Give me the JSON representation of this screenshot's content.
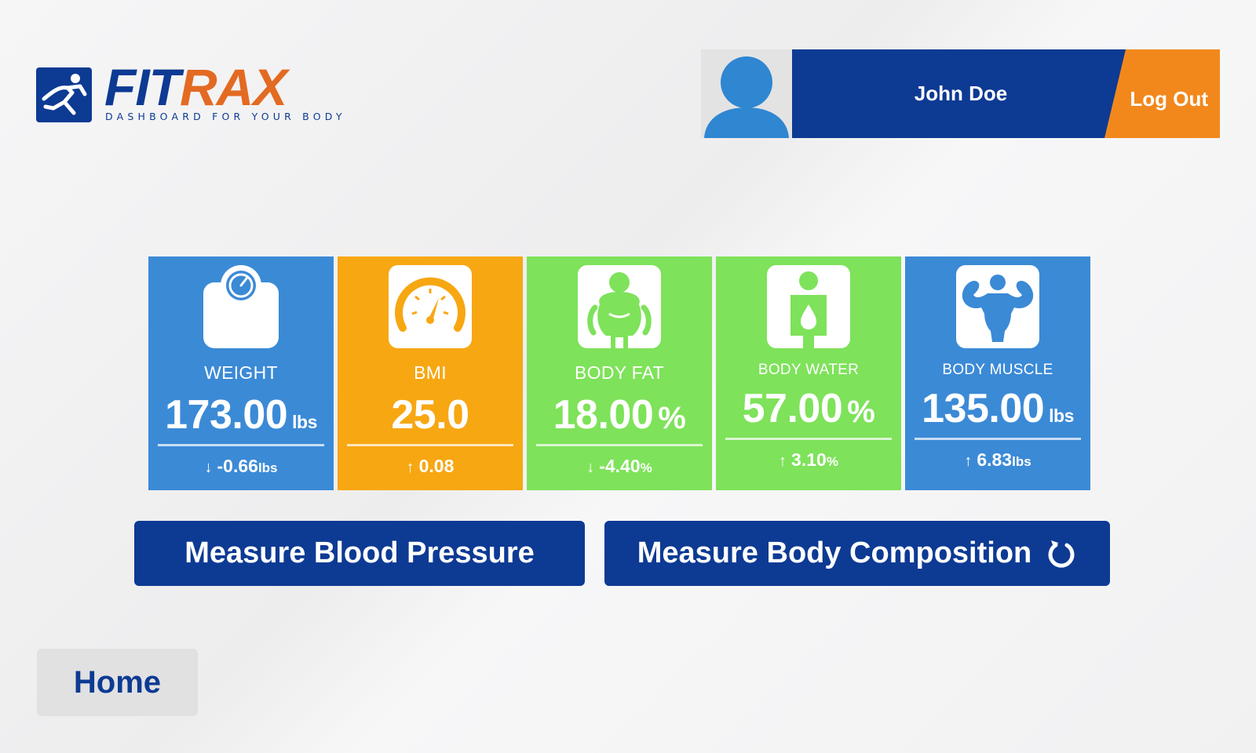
{
  "brand": {
    "name_part1": "FIT",
    "name_part2": "RAX",
    "tagline": "DASHBOARD FOR YOUR BODY",
    "logo_icon": "runner-icon",
    "colors": {
      "primary": "#0d3a93",
      "accent": "#e36a22"
    }
  },
  "user": {
    "name": "John Doe",
    "avatar_icon": "user-silhouette-icon",
    "logout_label": "Log Out"
  },
  "metrics": [
    {
      "key": "weight",
      "label": "WEIGHT",
      "value": "173.00",
      "unit": "lbs",
      "delta_arrow": "down",
      "delta": "-0.66",
      "delta_unit": "lbs",
      "icon": "scale-icon",
      "color": "#3b8ad6"
    },
    {
      "key": "bmi",
      "label": "BMI",
      "value": "25.0",
      "unit": "",
      "delta_arrow": "up",
      "delta": "0.08",
      "delta_unit": "",
      "icon": "gauge-icon",
      "color": "#f7a712"
    },
    {
      "key": "body_fat",
      "label": "BODY FAT",
      "value": "18.00",
      "unit": "%",
      "delta_arrow": "down",
      "delta": "-4.40",
      "delta_unit": "%",
      "icon": "body-fat-icon",
      "color": "#7ee25a"
    },
    {
      "key": "body_water",
      "label": "BODY WATER",
      "value": "57.00",
      "unit": "%",
      "delta_arrow": "up",
      "delta": "3.10",
      "delta_unit": "%",
      "icon": "water-drop-body-icon",
      "color": "#7ee25a"
    },
    {
      "key": "body_muscle",
      "label": "BODY MUSCLE",
      "value": "135.00",
      "unit": "lbs",
      "delta_arrow": "up",
      "delta": "6.83",
      "delta_unit": "lbs",
      "icon": "muscle-icon",
      "color": "#3b8ad6"
    }
  ],
  "actions": {
    "blood_pressure_label": "Measure Blood Pressure",
    "body_composition_label": "Measure Body Composition",
    "body_composition_icon": "refresh-icon"
  },
  "nav": {
    "home_label": "Home"
  }
}
